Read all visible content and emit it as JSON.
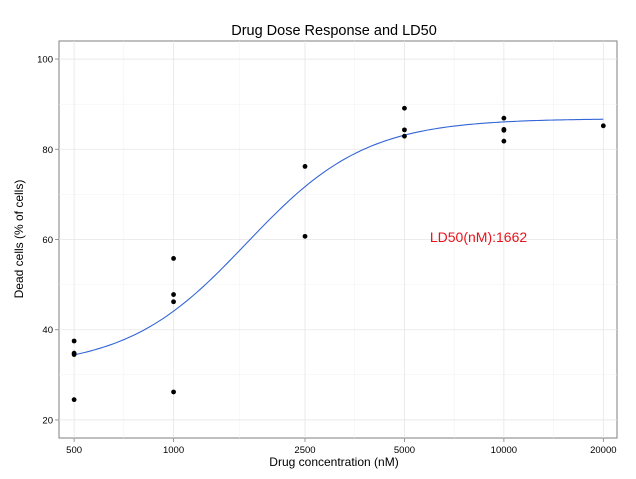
{
  "chart_data": {
    "type": "scatter",
    "title": "Drug Dose Response and LD50",
    "xlabel": "Drug concentration (nM)",
    "ylabel": "Dead cells (% of cells)",
    "x_scale": "log",
    "xlim": [
      450,
      22000
    ],
    "ylim": [
      16,
      104
    ],
    "x_ticks": [
      500,
      1000,
      2500,
      5000,
      10000,
      20000
    ],
    "x_tick_labels": [
      "500",
      "1000",
      "2500",
      "5000",
      "10000",
      "20000"
    ],
    "y_ticks": [
      20,
      40,
      60,
      80,
      100
    ],
    "y_tick_labels": [
      "20",
      "40",
      "60",
      "80",
      "100"
    ],
    "grid": true,
    "points": {
      "x": [
        500,
        500,
        500,
        500,
        1000,
        1000,
        1000,
        1000,
        2500,
        2500,
        5000,
        5000,
        5000,
        10000,
        10000,
        10000,
        10000,
        20000
      ],
      "y": [
        37.5,
        34.8,
        34.5,
        24.5,
        55.8,
        47.8,
        46.2,
        26.2,
        76.2,
        60.7,
        89.1,
        84.3,
        82.9,
        86.9,
        84.4,
        84.2,
        81.8,
        85.2
      ],
      "color": "#000000"
    },
    "fit_curve": {
      "model": "logistic",
      "bottom": 31.5,
      "top": 86.8,
      "ec50": 1662,
      "hill": 2.4,
      "x_start": 500,
      "x_end": 20000,
      "color": "#3366d6"
    },
    "annotation": {
      "text": "LD50(nM):1662",
      "x": 8000,
      "y": 59,
      "color": "#e8141b"
    }
  }
}
